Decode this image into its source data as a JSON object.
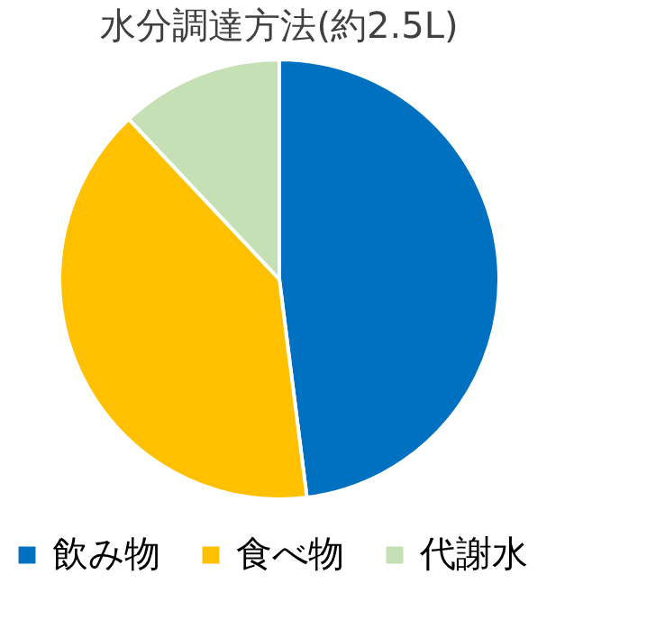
{
  "chart_data": {
    "type": "pie",
    "title": "水分調達方法(約2.5L)",
    "categories": [
      "飲み物",
      "食べ物",
      "代謝水"
    ],
    "values": [
      48,
      40,
      12
    ],
    "colors": [
      "#0070c0",
      "#ffc000",
      "#c5e0b4"
    ],
    "legend": "bottom"
  }
}
